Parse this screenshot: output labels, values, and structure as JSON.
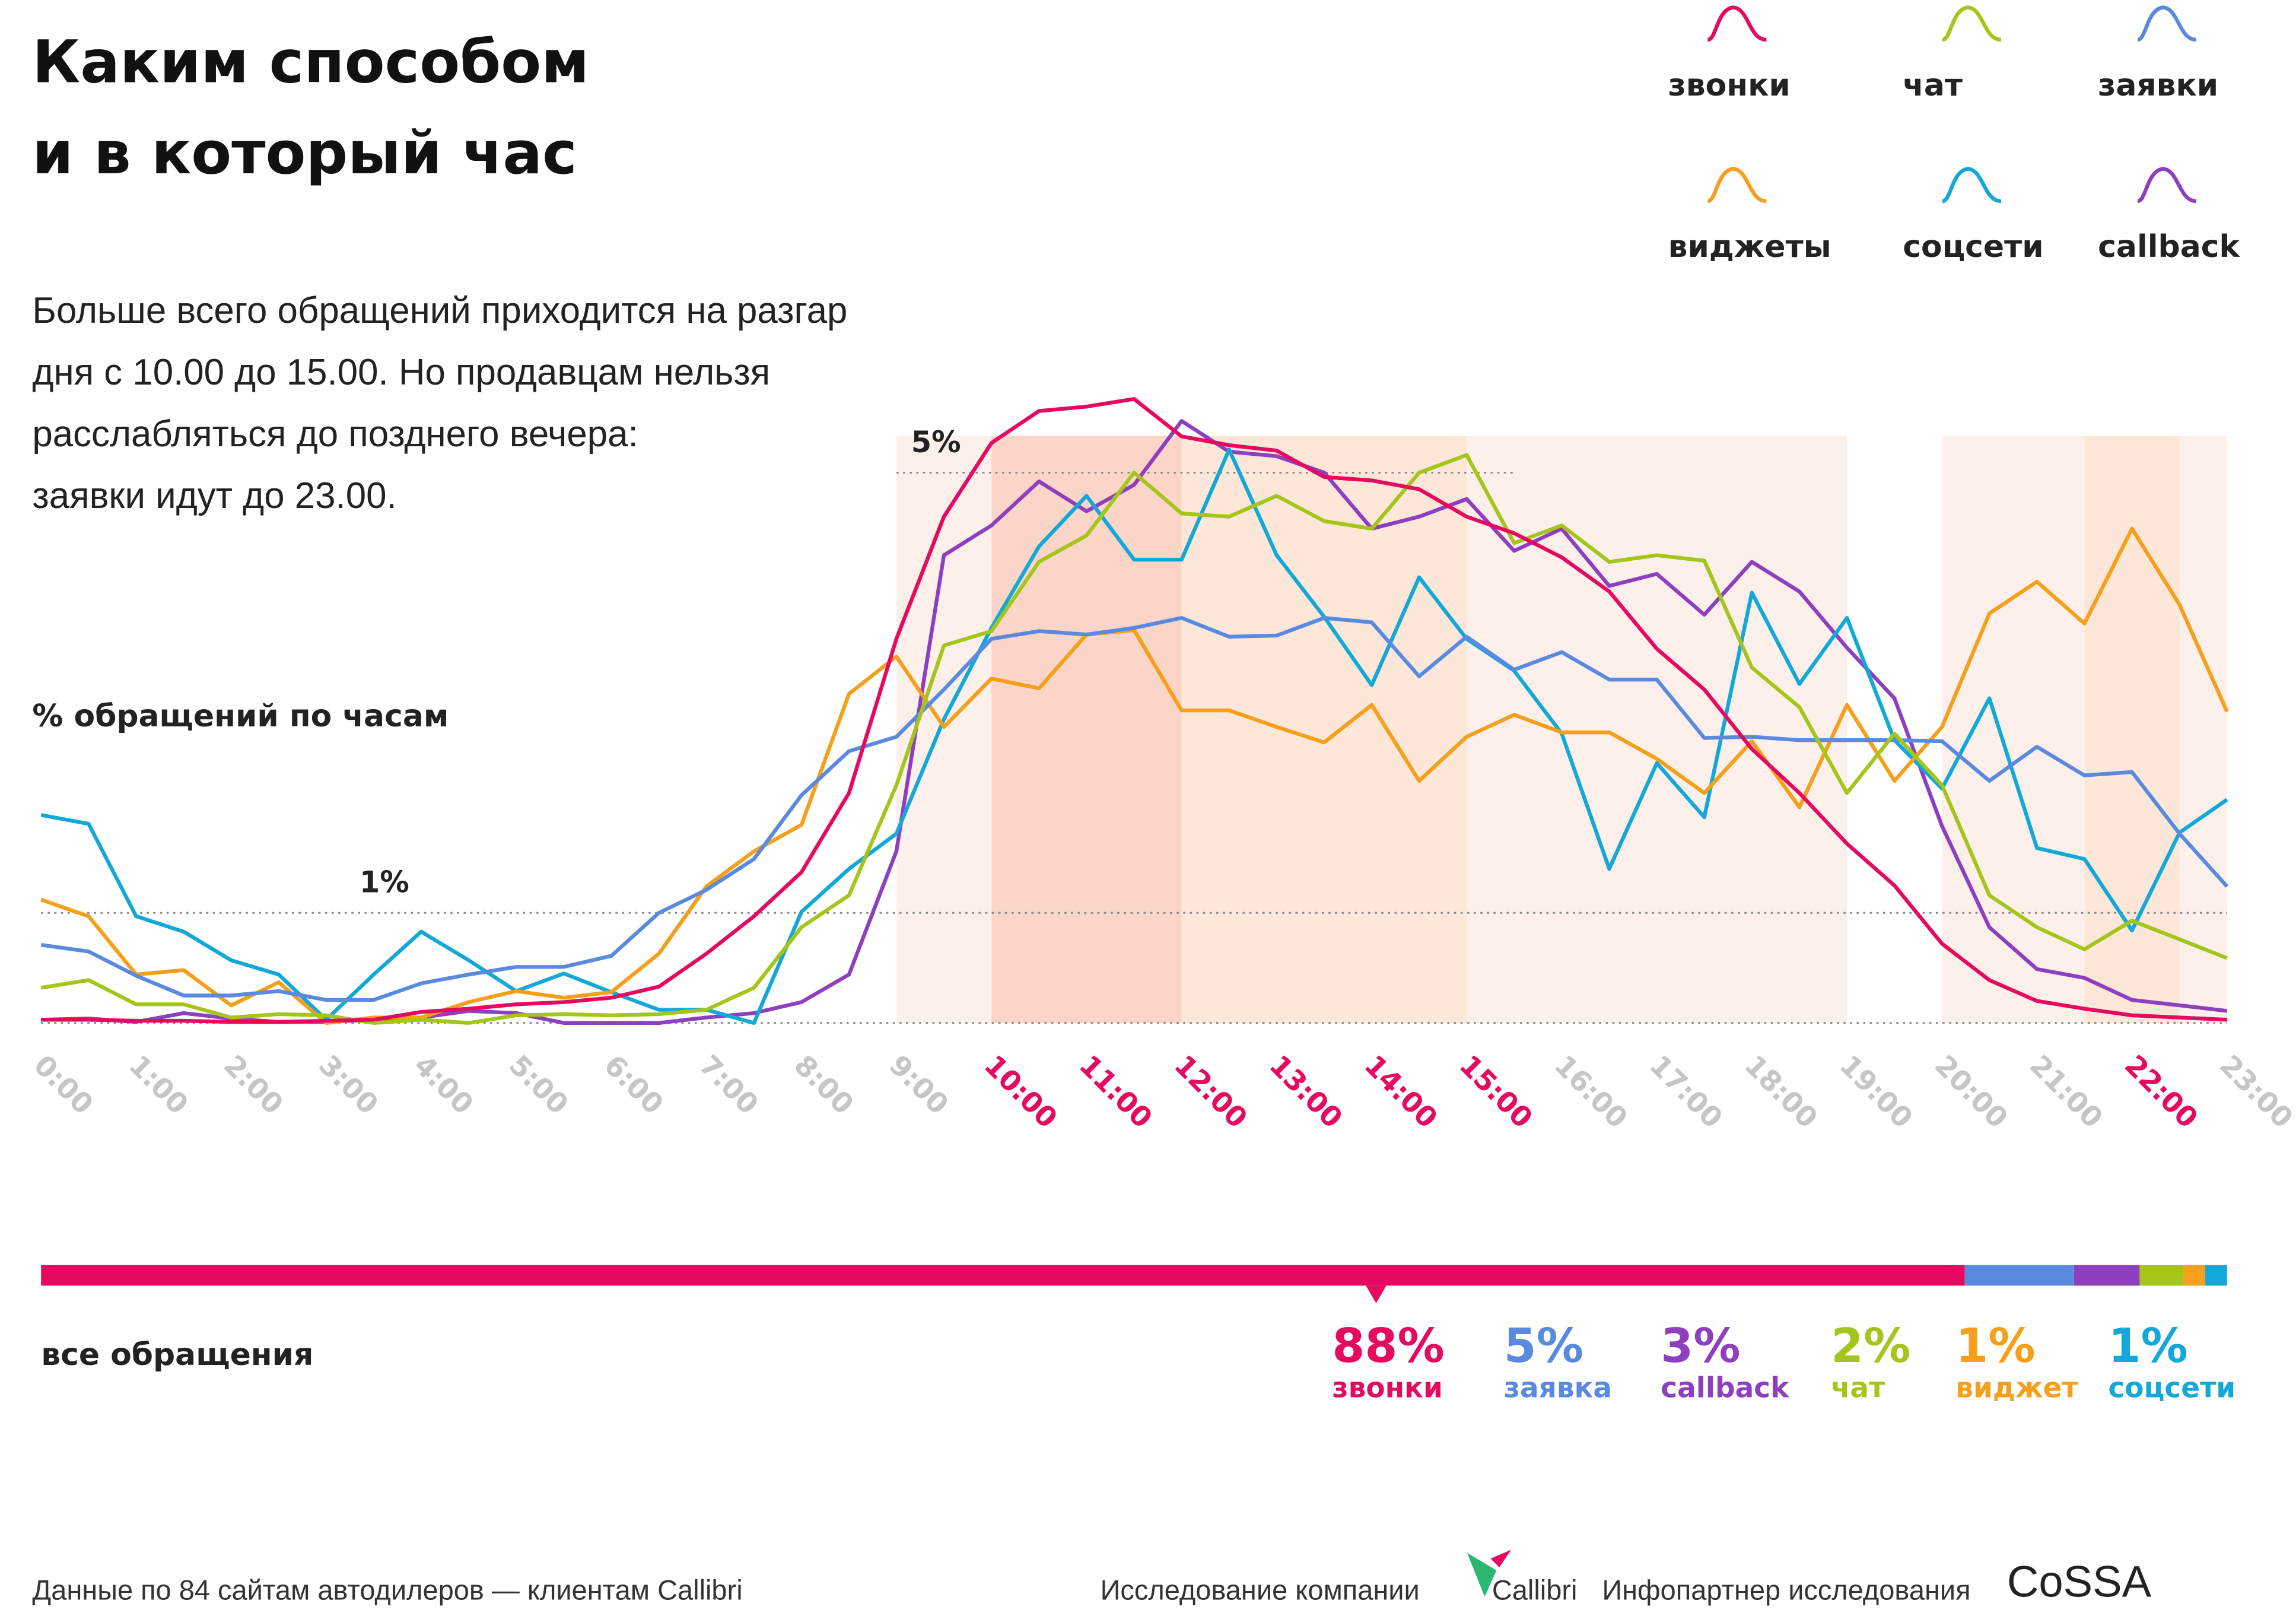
{
  "header": {
    "title": [
      "Каким способом",
      "и в который час"
    ],
    "description": [
      "Больше всего обращений приходится на разгар",
      "дня с 10.00 до 15.00. Но продавцам нельзя",
      "расслабляться до позднего вечера:",
      "заявки идут до 23.00."
    ]
  },
  "chart_data": [
    {
      "type": "line",
      "ylabel": "% обращений по часам",
      "categories": [
        "0:00",
        null,
        "1:00",
        null,
        "2:00",
        null,
        "3:00",
        null,
        "4:00",
        null,
        "5:00",
        null,
        "6:00",
        null,
        "7:00",
        null,
        "8:00",
        null,
        "9:00",
        null,
        "10:00",
        null,
        "11:00",
        null,
        "12:00",
        null,
        "13:00",
        null,
        "14:00",
        null,
        "15:00",
        null,
        "16:00",
        null,
        "17:00",
        null,
        "18:00",
        null,
        "19:00",
        null,
        "20:00",
        null,
        "21:00",
        null,
        "22:00",
        null,
        "23:00"
      ],
      "highlighted": [
        20,
        22,
        24,
        26,
        28,
        30,
        44
      ],
      "highlight_color": "#e5095f",
      "tick_color": "#c6c6c6",
      "bands": [
        {
          "start": 18,
          "end": 38,
          "color": "#fdf0eb"
        },
        {
          "start": 20,
          "end": 24,
          "color": "#fcd5c9"
        },
        {
          "start": 24,
          "end": 30,
          "color": "#fde7d8"
        },
        {
          "start": 40,
          "end": 46,
          "color": "#fdf0eb"
        },
        {
          "start": 43,
          "end": 45,
          "color": "#fde7d8"
        }
      ],
      "ylim": [
        0,
        6
      ],
      "yticks": [
        {
          "value": 1,
          "label": "1%"
        },
        {
          "value": 5,
          "label": "5%"
        }
      ],
      "series": [
        {
          "name": "звонки",
          "color": "#e5095f",
          "values": [
            0.03,
            0.03,
            0.02,
            0.02,
            0.01,
            0.01,
            0.02,
            0.03,
            0.1,
            0.13,
            0.17,
            0.19,
            0.23,
            0.33,
            0.63,
            0.97,
            1.37,
            2.09,
            3.49,
            4.6,
            5.27,
            5.56,
            5.6,
            5.67,
            5.33,
            5.25,
            5.2,
            4.96,
            4.93,
            4.85,
            4.6,
            4.45,
            4.23,
            3.92,
            3.4,
            3.03,
            2.49,
            2.09,
            1.63,
            1.25,
            0.72,
            0.39,
            0.2,
            0.13,
            0.07,
            0.05,
            0.03
          ]
        },
        {
          "name": "чат",
          "color": "#a4c51a",
          "values": [
            0.32,
            0.39,
            0.17,
            0.17,
            0.05,
            0.08,
            0.07,
            0,
            0.03,
            0,
            0.07,
            0.08,
            0.07,
            0.08,
            0.12,
            0.32,
            0.87,
            1.16,
            2.16,
            3.43,
            3.56,
            4.19,
            4.43,
            5.0,
            4.63,
            4.6,
            4.79,
            4.56,
            4.49,
            5.0,
            5.16,
            4.36,
            4.52,
            4.19,
            4.25,
            4.2,
            3.23,
            2.87,
            2.09,
            2.63,
            2.16,
            1.16,
            0.87,
            0.67,
            0.93,
            0.76,
            0.59
          ]
        },
        {
          "name": "заявки",
          "color": "#5a8ae0",
          "values": [
            0.71,
            0.65,
            0.43,
            0.25,
            0.25,
            0.29,
            0.21,
            0.21,
            0.36,
            0.44,
            0.51,
            0.51,
            0.61,
            1.0,
            1.21,
            1.49,
            2.07,
            2.47,
            2.6,
            3.03,
            3.49,
            3.56,
            3.53,
            3.59,
            3.68,
            3.51,
            3.52,
            3.68,
            3.64,
            3.15,
            3.51,
            3.21,
            3.37,
            3.12,
            3.12,
            2.59,
            2.6,
            2.57,
            2.57,
            2.57,
            2.56,
            2.2,
            2.51,
            2.25,
            2.28,
            1.72,
            1.24
          ]
        },
        {
          "name": "виджеты",
          "color": "#f59f1a",
          "values": [
            1.12,
            0.97,
            0.44,
            0.48,
            0.16,
            0.37,
            0,
            0.05,
            0.05,
            0.19,
            0.29,
            0.23,
            0.28,
            0.63,
            1.24,
            1.56,
            1.8,
            2.99,
            3.33,
            2.69,
            3.13,
            3.04,
            3.53,
            3.57,
            2.84,
            2.84,
            2.69,
            2.55,
            2.89,
            2.2,
            2.6,
            2.8,
            2.64,
            2.64,
            2.4,
            2.09,
            2.56,
            1.96,
            2.89,
            2.2,
            2.69,
            3.72,
            4.01,
            3.63,
            4.49,
            3.8,
            2.83
          ]
        },
        {
          "name": "соцсети",
          "color": "#12a8d8",
          "values": [
            1.89,
            1.81,
            0.97,
            0.83,
            0.57,
            0.44,
            0.03,
            0.44,
            0.83,
            0.57,
            0.29,
            0.45,
            0.28,
            0.12,
            0.12,
            0,
            1.01,
            1.4,
            1.72,
            2.76,
            3.59,
            4.33,
            4.79,
            4.21,
            4.21,
            5.21,
            4.25,
            3.69,
            3.07,
            4.05,
            3.49,
            3.2,
            2.63,
            1.4,
            2.36,
            1.87,
            3.91,
            3.08,
            3.68,
            2.57,
            2.13,
            2.95,
            1.59,
            1.49,
            0.84,
            1.73,
            2.03
          ]
        },
        {
          "name": "callback",
          "color": "#8e3fbf",
          "values": [
            0.03,
            0.04,
            0.01,
            0.09,
            0.04,
            0.01,
            0.01,
            0.03,
            0.05,
            0.11,
            0.09,
            0,
            0,
            0,
            0.05,
            0.09,
            0.19,
            0.44,
            1.56,
            4.25,
            4.52,
            4.92,
            4.65,
            4.89,
            5.47,
            5.19,
            5.15,
            5.0,
            4.49,
            4.6,
            4.76,
            4.29,
            4.49,
            3.97,
            4.08,
            3.71,
            4.19,
            3.92,
            3.41,
            2.95,
            1.79,
            0.87,
            0.49,
            0.41,
            0.21,
            0.16,
            0.11
          ]
        }
      ]
    },
    {
      "type": "stacked_bar",
      "label": "все обращения",
      "xlim": [
        0,
        100
      ],
      "categories": [
        "звонки",
        "заявка",
        "callback",
        "чат",
        "виджет",
        "соцсети"
      ],
      "values": [
        88,
        5,
        3,
        2,
        1,
        1
      ],
      "value_labels": [
        "88%",
        "5%",
        "3%",
        "2%",
        "1%",
        "1%"
      ],
      "colors": [
        "#e5095f",
        "#5a8ae0",
        "#8e3fbf",
        "#a4c51a",
        "#f59f1a",
        "#12a8d8"
      ]
    }
  ],
  "footer": {
    "source": "Данные по 84 сайтам автодилеров — клиентам Callibri",
    "research": "Исследование компании",
    "company": "Callibri",
    "partner_text": "Инфопартнер исследования",
    "partner": "CoSSA"
  }
}
